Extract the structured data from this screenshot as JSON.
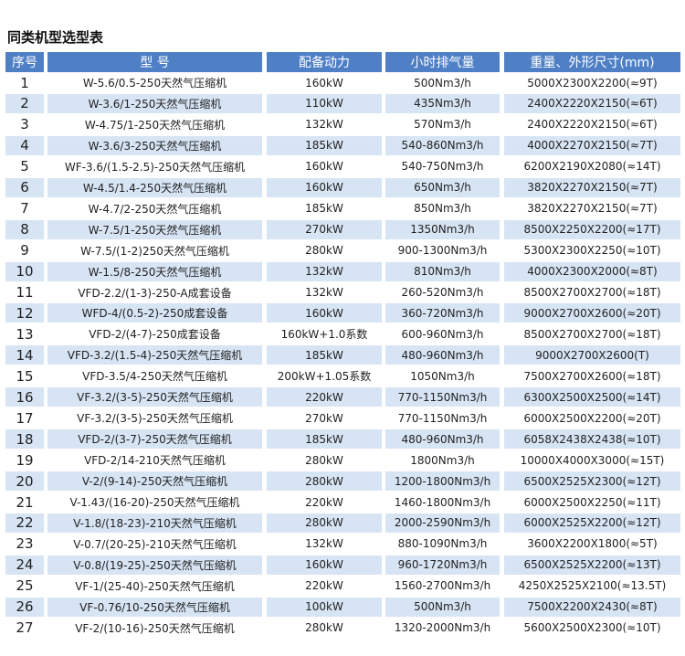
{
  "title": "同类机型选型表",
  "table": {
    "header": [
      "序号",
      "型 号",
      "配备动力",
      "小时排气量",
      "重量、外形尺寸(mm)"
    ],
    "rows": [
      [
        "1",
        "W-5.6/0.5-250天然气压缩机",
        "160kW",
        "500Nm3/h",
        "5000X2300X2200(≈9T)"
      ],
      [
        "2",
        "W-3.6/1-250天然气压缩机",
        "110kW",
        "435Nm3/h",
        "2400X2220X2150(≈6T)"
      ],
      [
        "3",
        "W-4.75/1-250天然气压缩机",
        "132kW",
        "570Nm3/h",
        "2400X2220X2150(≈6T)"
      ],
      [
        "4",
        "W-3.6/3-250天然气压缩机",
        "185kW",
        "540-860Nm3/h",
        "4000X2270X2150(≈7T)"
      ],
      [
        "5",
        "WF-3.6/(1.5-2.5)-250天然气压缩机",
        "160kW",
        "540-750Nm3/h",
        "6200X2190X2080(≈14T)"
      ],
      [
        "6",
        "W-4.5/1.4-250天然气压缩机",
        "160kW",
        "650Nm3/h",
        "3820X2270X2150(≈7T)"
      ],
      [
        "7",
        "W-4.7/2-250天然气压缩机",
        "185kW",
        "850Nm3/h",
        "3820X2270X2150(≈7T)"
      ],
      [
        "8",
        "W-7.5/1-250天然气压缩机",
        "270kW",
        "1350Nm3/h",
        "8500X2250X2200(≈17T)"
      ],
      [
        "9",
        "W-7.5/(1-2)250天然气压缩机",
        "280kW",
        "900-1300Nm3/h",
        "5300X2300X2250(≈10T)"
      ],
      [
        "10",
        "W-1.5/8-250天然气压缩机",
        "132kW",
        "810Nm3/h",
        "4000X2300X2000(≈8T)"
      ],
      [
        "11",
        "VFD-2.2/(1-3)-250-A成套设备",
        "132kW",
        "260-520Nm3/h",
        "8500X2700X2700(≈18T)"
      ],
      [
        "12",
        "WFD-4/(0.5-2)-250成套设备",
        "160kW",
        "360-720Nm3/h",
        "9000X2700X2600(≈20T)"
      ],
      [
        "13",
        "VFD-2/(4-7)-250成套设备",
        "160kW+1.0系数",
        "600-960Nm3/h",
        "8500X2700X2700(≈18T)"
      ],
      [
        "14",
        "VFD-3.2/(1.5-4)-250天然气压缩机",
        "185kW",
        "480-960Nm3/h",
        "9000X2700X2600(T)"
      ],
      [
        "15",
        "VFD-3.5/4-250天然气压缩机",
        "200kW+1.05系数",
        "1050Nm3/h",
        "7500X2700X2600(≈18T)"
      ],
      [
        "16",
        "VF-3.2/(3-5)-250天然气压缩机",
        "220kW",
        "770-1150Nm3/h",
        "6300X2500X2500(≈14T)"
      ],
      [
        "17",
        "VF-3.2/(3-5)-250天然气压缩机",
        "270kW",
        "770-1150Nm3/h",
        "6000X2500X2200(≈20T)"
      ],
      [
        "18",
        "VFD-2/(3-7)-250天然气压缩机",
        "185kW",
        "480-960Nm3/h",
        "6058X2438X2438(≈10T)"
      ],
      [
        "19",
        "VFD-2/14-210天然气压缩机",
        "280kW",
        "1800Nm3/h",
        "10000X4000X3000(≈15T)"
      ],
      [
        "20",
        "V-2/(9-14)-250天然气压缩机",
        "280kW",
        "1200-1800Nm3/h",
        "6500X2525X2300(≈12T)"
      ],
      [
        "21",
        "V-1.43/(16-20)-250天然气压缩机",
        "220kW",
        "1460-1800Nm3/h",
        "6000X2500X2250(≈11T)"
      ],
      [
        "22",
        "V-1.8/(18-23)-210天然气压缩机",
        "280kW",
        "2000-2590Nm3/h",
        "6000X2525X2200(≈12T)"
      ],
      [
        "23",
        "V-0.7/(20-25)-210天然气压缩机",
        "132kW",
        "880-1090Nm3/h",
        "3600X2200X1800(≈5T)"
      ],
      [
        "24",
        "V-0.8/(19-25)-250天然气压缩机",
        "160kW",
        "960-1720Nm3/h",
        "6500X2525X2200(≈13T)"
      ],
      [
        "25",
        "VF-1/(25-40)-250天然气压缩机",
        "220kW",
        "1560-2700Nm3/h",
        "4250X2525X2100(≈13.5T)"
      ],
      [
        "26",
        "VF-0.76/10-250天然气压缩机",
        "100kW",
        "500Nm3/h",
        "7500X2200X2430(≈8T)"
      ],
      [
        "27",
        "VF-2/(10-16)-250天然气压缩机",
        "280kW",
        "1320-2000Nm3/h",
        "5600X2500X2300(≈10T)"
      ]
    ]
  }
}
